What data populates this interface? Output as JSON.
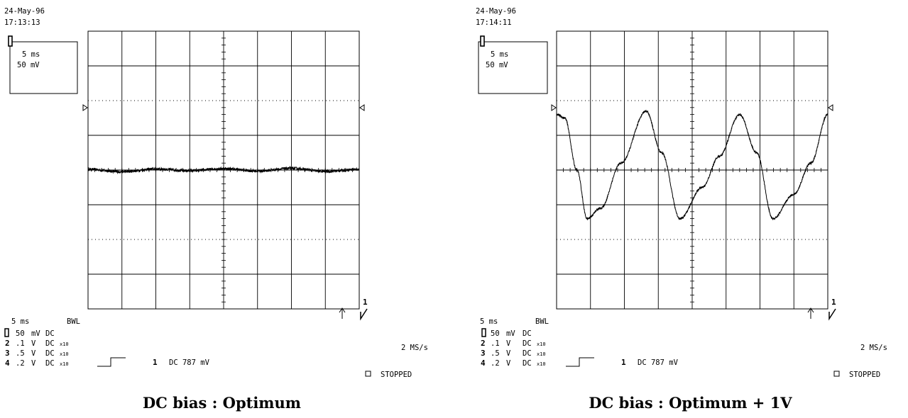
{
  "panels": [
    {
      "date": "24-May-96",
      "time": "17:13:13",
      "box_timebase": "5 ms",
      "box_volts": "50 mV",
      "timebase": "5 ms",
      "bwl": "BWL",
      "channels": [
        {
          "num": "1",
          "value": "50",
          "unit": "mV",
          "coupling": "DC",
          "probe": ""
        },
        {
          "num": "2",
          "value": ".1",
          "unit": "V",
          "coupling": "DC",
          "probe": "x10"
        },
        {
          "num": "3",
          "value": ".5",
          "unit": "V",
          "coupling": "DC",
          "probe": "x10"
        },
        {
          "num": "4",
          "value": ".2",
          "unit": "V",
          "coupling": "DC",
          "probe": "x10"
        }
      ],
      "sample_rate": "2 MS/s",
      "trigger_channel": "1",
      "trigger_text": "DC 787 mV",
      "status": "STOPPED",
      "edge_marker": "1",
      "caption": "DC bias : Optimum"
    },
    {
      "date": "24-May-96",
      "time": "17:14:11",
      "box_timebase": "5 ms",
      "box_volts": "50 mV",
      "timebase": "5 ms",
      "bwl": "BWL",
      "channels": [
        {
          "num": "1",
          "value": "50",
          "unit": "mV",
          "coupling": "DC",
          "probe": ""
        },
        {
          "num": "2",
          "value": ".1",
          "unit": "V",
          "coupling": "DC",
          "probe": "x10"
        },
        {
          "num": "3",
          "value": ".5",
          "unit": "V",
          "coupling": "DC",
          "probe": "x10"
        },
        {
          "num": "4",
          "value": ".2",
          "unit": "V",
          "coupling": "DC",
          "probe": "x10"
        }
      ],
      "sample_rate": "2 MS/s",
      "trigger_channel": "1",
      "trigger_text": "DC 787 mV",
      "status": "STOPPED",
      "edge_marker": "1",
      "caption": "DC bias : Optimum + 1V"
    }
  ],
  "chart_data": [
    {
      "type": "line",
      "x_divisions": 8,
      "y_divisions": 8,
      "x_per_div_ms": 5,
      "y_per_div_mV": 50,
      "x_range_ms": [
        0,
        40
      ],
      "y_range_div": [
        -4,
        4
      ],
      "grid": true,
      "series": [
        {
          "waveform": "flat-noisy",
          "offset_div": 0.0,
          "ripple_amplitude_div": 0.05,
          "ripple_period_ms": 10,
          "noise_div": 0.04,
          "points_div": [
            [
              0,
              0.02
            ],
            [
              5,
              -0.05
            ],
            [
              10,
              0.03
            ],
            [
              15,
              -0.02
            ],
            [
              20,
              0.04
            ],
            [
              25,
              -0.03
            ],
            [
              30,
              0.05
            ],
            [
              35,
              -0.04
            ],
            [
              40,
              0.02
            ]
          ]
        }
      ]
    },
    {
      "type": "line",
      "x_divisions": 8,
      "y_divisions": 8,
      "x_per_div_ms": 5,
      "y_per_div_mV": 50,
      "x_range_ms": [
        0,
        40
      ],
      "y_range_div": [
        -4,
        4
      ],
      "grid": true,
      "series": [
        {
          "waveform": "distorted-sine",
          "period_ms": 13.7,
          "max_div": 1.7,
          "min_div": -1.4,
          "noise_div": 0.03,
          "points_div": [
            [
              0,
              1.6
            ],
            [
              1.2,
              1.5
            ],
            [
              3,
              0.0
            ],
            [
              4.5,
              -1.4
            ],
            [
              6.5,
              -1.1
            ],
            [
              9.5,
              0.2
            ],
            [
              13.2,
              1.7
            ],
            [
              15.5,
              0.5
            ],
            [
              18.2,
              -1.4
            ],
            [
              21.5,
              -0.5
            ],
            [
              24,
              0.4
            ],
            [
              27,
              1.6
            ],
            [
              29.5,
              0.5
            ],
            [
              31.9,
              -1.4
            ],
            [
              35,
              -0.7
            ],
            [
              37.5,
              0.2
            ],
            [
              40,
              1.6
            ]
          ]
        }
      ]
    }
  ]
}
